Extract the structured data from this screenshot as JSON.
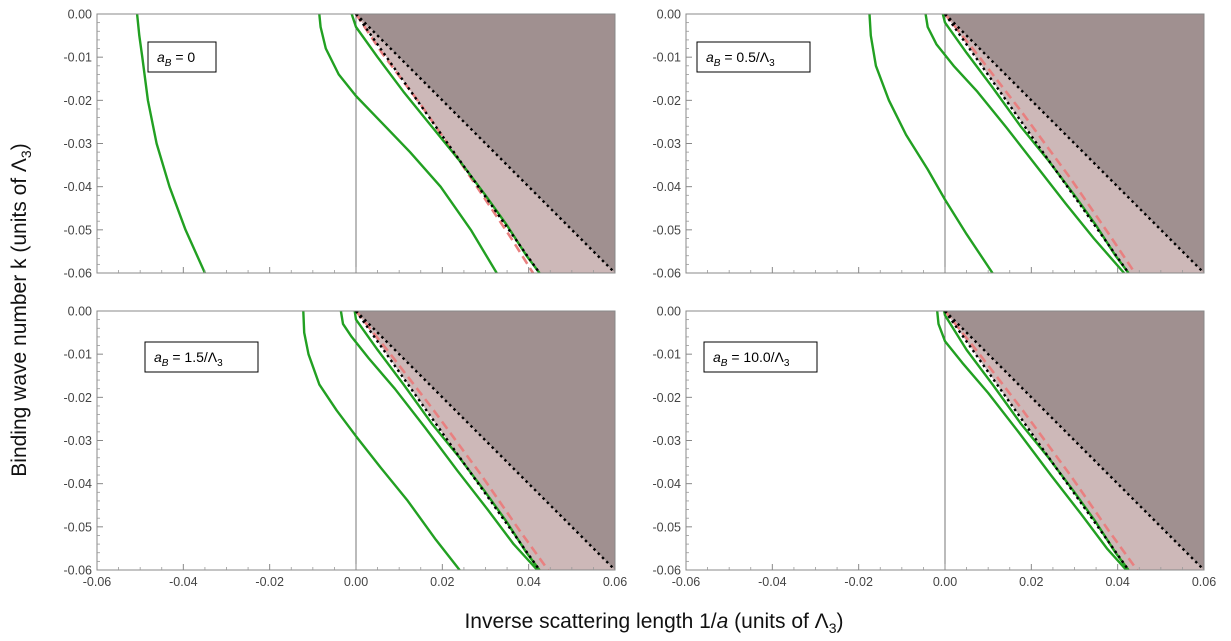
{
  "figure": {
    "ylabel": "Binding wave number k (units of Λ3)",
    "xlabel": "Inverse scattering length 1/a (units of Λ3)",
    "colors": {
      "dark_region": "#a09090",
      "light_region": "#cdb8b8",
      "green_curve": "#22a022",
      "pink_dashed": "#e88080",
      "black_dotted": "#000000"
    }
  },
  "chart_data": [
    {
      "type": "line",
      "annotation": {
        "var": "a",
        "sub": "B",
        "value": "0",
        "unit": "",
        "unit_sub": ""
      },
      "xlim": [
        -0.06,
        0.06
      ],
      "ylim": [
        -0.06,
        0.0
      ],
      "x_ticks": [],
      "y_ticks": [
        "0.00",
        "-0.01",
        "-0.02",
        "-0.03",
        "-0.04",
        "-0.05",
        "-0.06"
      ],
      "dark_region_boundary": {
        "x": [
          0.0,
          0.06
        ],
        "y": [
          0.0,
          -0.06
        ]
      },
      "light_region_boundary": {
        "x": [
          0.0,
          0.0425
        ],
        "y": [
          0.0,
          -0.06
        ]
      },
      "green_curves": [
        {
          "x": [
            -0.0507,
            -0.0502,
            -0.0495,
            -0.0482,
            -0.0462,
            -0.0432,
            -0.0395,
            -0.035
          ],
          "y": [
            0.0,
            -0.005,
            -0.01,
            -0.02,
            -0.03,
            -0.04,
            -0.05,
            -0.06
          ]
        },
        {
          "x": [
            -0.0085,
            -0.0082,
            -0.007,
            -0.004,
            0.0,
            0.0058,
            0.0125,
            0.0196,
            0.0266,
            0.0326
          ],
          "y": [
            0.0,
            -0.003,
            -0.008,
            -0.014,
            -0.019,
            -0.025,
            -0.032,
            -0.04,
            -0.05,
            -0.06
          ]
        },
        {
          "x": [
            -0.001,
            0.0,
            0.005,
            0.011,
            0.0175,
            0.024,
            0.03,
            0.035,
            0.0395,
            0.0425
          ],
          "y": [
            0.0,
            -0.003,
            -0.01,
            -0.018,
            -0.026,
            -0.034,
            -0.042,
            -0.049,
            -0.056,
            -0.06
          ]
        }
      ],
      "pink_dashed": {
        "x": [
          0.0,
          0.006,
          0.015,
          0.026,
          0.036,
          0.041
        ],
        "y": [
          0.0,
          -0.009,
          -0.021,
          -0.037,
          -0.052,
          -0.06
        ]
      },
      "black_dotted": [
        {
          "x": [
            0.0,
            0.0425
          ],
          "y": [
            0.0,
            -0.06
          ]
        },
        {
          "x": [
            0.0,
            0.06
          ],
          "y": [
            0.0,
            -0.06
          ]
        }
      ]
    },
    {
      "type": "line",
      "annotation": {
        "var": "a",
        "sub": "B",
        "value": "0.5/",
        "unit": "Λ",
        "unit_sub": "3"
      },
      "xlim": [
        -0.06,
        0.06
      ],
      "ylim": [
        -0.06,
        0.0
      ],
      "x_ticks": [],
      "y_ticks": [
        "0.00",
        "-0.01",
        "-0.02",
        "-0.03",
        "-0.04",
        "-0.05",
        "-0.06"
      ],
      "dark_region_boundary": {
        "x": [
          0.0,
          0.06
        ],
        "y": [
          0.0,
          -0.06
        ]
      },
      "light_region_boundary": {
        "x": [
          0.0,
          0.0425
        ],
        "y": [
          0.0,
          -0.06
        ]
      },
      "green_curves": [
        {
          "x": [
            -0.0175,
            -0.0172,
            -0.016,
            -0.013,
            -0.009,
            -0.004,
            0.0,
            0.005,
            0.011
          ],
          "y": [
            0.0,
            -0.005,
            -0.012,
            -0.02,
            -0.028,
            -0.036,
            -0.043,
            -0.051,
            -0.06
          ]
        },
        {
          "x": [
            -0.0045,
            -0.004,
            -0.002,
            0.002,
            0.0075,
            0.014,
            0.021,
            0.028,
            0.0345,
            0.0415
          ],
          "y": [
            0.0,
            -0.003,
            -0.007,
            -0.012,
            -0.018,
            -0.026,
            -0.035,
            -0.044,
            -0.052,
            -0.06
          ]
        },
        {
          "x": [
            -0.0005,
            0.0,
            0.005,
            0.011,
            0.0175,
            0.024,
            0.03,
            0.035,
            0.0395,
            0.0425
          ],
          "y": [
            0.0,
            -0.002,
            -0.009,
            -0.017,
            -0.026,
            -0.034,
            -0.042,
            -0.049,
            -0.056,
            -0.06
          ]
        }
      ],
      "pink_dashed": {
        "x": [
          0.0,
          0.008,
          0.018,
          0.029,
          0.038,
          0.044
        ],
        "y": [
          0.0,
          -0.01,
          -0.023,
          -0.038,
          -0.051,
          -0.06
        ]
      },
      "black_dotted": [
        {
          "x": [
            0.0,
            0.0425
          ],
          "y": [
            0.0,
            -0.06
          ]
        },
        {
          "x": [
            0.0,
            0.06
          ],
          "y": [
            0.0,
            -0.06
          ]
        }
      ]
    },
    {
      "type": "line",
      "annotation": {
        "var": "a",
        "sub": "B",
        "value": "1.5/",
        "unit": "Λ",
        "unit_sub": "3"
      },
      "xlim": [
        -0.06,
        0.06
      ],
      "ylim": [
        -0.06,
        0.0
      ],
      "x_ticks": [
        "-0.06",
        "-0.04",
        "-0.02",
        "0.00",
        "0.02",
        "0.04",
        "0.06"
      ],
      "y_ticks": [
        "0.00",
        "-0.01",
        "-0.02",
        "-0.03",
        "-0.04",
        "-0.05",
        "-0.06"
      ],
      "dark_region_boundary": {
        "x": [
          0.0,
          0.06
        ],
        "y": [
          0.0,
          -0.06
        ]
      },
      "light_region_boundary": {
        "x": [
          0.0,
          0.0425
        ],
        "y": [
          0.0,
          -0.06
        ]
      },
      "green_curves": [
        {
          "x": [
            -0.0122,
            -0.012,
            -0.011,
            -0.0085,
            -0.0045,
            0.0,
            0.0055,
            0.012,
            0.0185,
            0.024
          ],
          "y": [
            0.0,
            -0.005,
            -0.01,
            -0.017,
            -0.023,
            -0.029,
            -0.036,
            -0.044,
            -0.053,
            -0.06
          ]
        },
        {
          "x": [
            -0.0035,
            -0.003,
            -0.001,
            0.003,
            0.009,
            0.016,
            0.0235,
            0.0305,
            0.0365,
            0.042
          ],
          "y": [
            0.0,
            -0.003,
            -0.006,
            -0.011,
            -0.018,
            -0.027,
            -0.037,
            -0.046,
            -0.054,
            -0.06
          ]
        },
        {
          "x": [
            -0.0003,
            0.0,
            0.005,
            0.011,
            0.0175,
            0.024,
            0.03,
            0.035,
            0.0395,
            0.0425
          ],
          "y": [
            0.0,
            -0.002,
            -0.009,
            -0.017,
            -0.026,
            -0.034,
            -0.042,
            -0.049,
            -0.056,
            -0.06
          ]
        }
      ],
      "pink_dashed": {
        "x": [
          0.0,
          0.008,
          0.018,
          0.029,
          0.038,
          0.0445
        ],
        "y": [
          0.0,
          -0.01,
          -0.023,
          -0.038,
          -0.051,
          -0.06
        ]
      },
      "black_dotted": [
        {
          "x": [
            0.0,
            0.0425
          ],
          "y": [
            0.0,
            -0.06
          ]
        },
        {
          "x": [
            0.0,
            0.06
          ],
          "y": [
            0.0,
            -0.06
          ]
        }
      ]
    },
    {
      "type": "line",
      "annotation": {
        "var": "a",
        "sub": "B",
        "value": "10.0/",
        "unit": "Λ",
        "unit_sub": "3"
      },
      "xlim": [
        -0.06,
        0.06
      ],
      "ylim": [
        -0.06,
        0.0
      ],
      "x_ticks": [
        "-0.06",
        "-0.04",
        "-0.02",
        "0.00",
        "0.02",
        "0.04",
        "0.06"
      ],
      "y_ticks": [
        "0.00",
        "-0.01",
        "-0.02",
        "-0.03",
        "-0.04",
        "-0.05",
        "-0.06"
      ],
      "dark_region_boundary": {
        "x": [
          0.0,
          0.06
        ],
        "y": [
          0.0,
          -0.06
        ]
      },
      "light_region_boundary": {
        "x": [
          0.0,
          0.0425
        ],
        "y": [
          0.0,
          -0.06
        ]
      },
      "green_curves": [
        {
          "x": [
            -0.0018,
            -0.0015,
            0.0,
            0.004,
            0.01,
            0.017,
            0.0245,
            0.0315,
            0.0375,
            0.042
          ],
          "y": [
            0.0,
            -0.003,
            -0.007,
            -0.012,
            -0.019,
            -0.028,
            -0.038,
            -0.047,
            -0.055,
            -0.06
          ]
        },
        {
          "x": [
            -0.0002,
            0.0,
            0.005,
            0.011,
            0.0175,
            0.024,
            0.03,
            0.035,
            0.0395,
            0.0425
          ],
          "y": [
            0.0,
            -0.001,
            -0.009,
            -0.017,
            -0.026,
            -0.034,
            -0.042,
            -0.049,
            -0.056,
            -0.06
          ]
        }
      ],
      "pink_dashed": {
        "x": [
          0.0,
          0.008,
          0.018,
          0.029,
          0.038,
          0.0445
        ],
        "y": [
          0.0,
          -0.01,
          -0.023,
          -0.038,
          -0.051,
          -0.06
        ]
      },
      "black_dotted": [
        {
          "x": [
            0.0,
            0.0425
          ],
          "y": [
            0.0,
            -0.06
          ]
        },
        {
          "x": [
            0.0,
            0.06
          ],
          "y": [
            0.0,
            -0.06
          ]
        }
      ]
    }
  ]
}
